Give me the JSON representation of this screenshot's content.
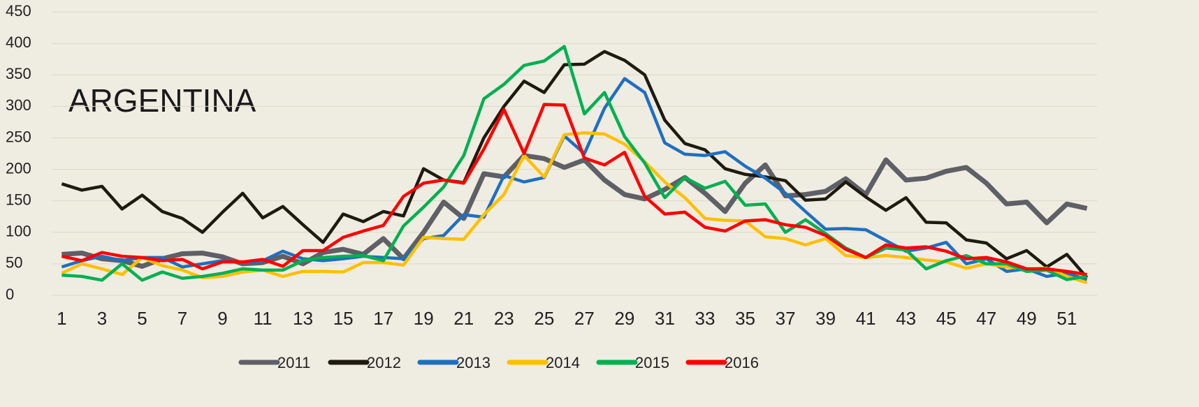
{
  "chart_data": {
    "type": "line",
    "title": "ARGENTINA",
    "x": [
      1,
      2,
      3,
      4,
      5,
      6,
      7,
      8,
      9,
      10,
      11,
      12,
      13,
      14,
      15,
      16,
      17,
      18,
      19,
      20,
      21,
      22,
      23,
      24,
      25,
      26,
      27,
      28,
      29,
      30,
      31,
      32,
      33,
      34,
      35,
      36,
      37,
      38,
      39,
      40,
      41,
      42,
      43,
      44,
      45,
      46,
      47,
      48,
      49,
      50,
      51,
      52
    ],
    "xlim": [
      0.5,
      52.5
    ],
    "xticks": [
      1,
      3,
      5,
      7,
      9,
      11,
      13,
      15,
      17,
      19,
      21,
      23,
      25,
      27,
      29,
      31,
      33,
      35,
      37,
      39,
      41,
      43,
      45,
      47,
      49,
      51
    ],
    "ylim": [
      0,
      450
    ],
    "yticks": [
      0,
      50,
      100,
      150,
      200,
      250,
      300,
      350,
      400,
      450
    ],
    "grid": true,
    "legend": "bottom",
    "series": [
      {
        "name": "2011",
        "color": "#5f5f66",
        "values": [
          65,
          67,
          58,
          55,
          46,
          58,
          66,
          67,
          61,
          50,
          52,
          62,
          50,
          68,
          73,
          65,
          90,
          58,
          100,
          148,
          122,
          193,
          188,
          222,
          217,
          203,
          215,
          183,
          160,
          153,
          168,
          187,
          162,
          133,
          178,
          207,
          158,
          160,
          165,
          185,
          160,
          215,
          183,
          186,
          197,
          203,
          178,
          145,
          148,
          115,
          145,
          138
        ]
      },
      {
        "name": "2012",
        "color": "#1f1a10",
        "values": [
          177,
          167,
          173,
          137,
          159,
          133,
          122,
          100,
          132,
          162,
          123,
          141,
          112,
          84,
          129,
          117,
          133,
          126,
          201,
          183,
          179,
          250,
          300,
          340,
          322,
          366,
          367,
          387,
          373,
          350,
          278,
          241,
          231,
          201,
          192,
          188,
          182,
          151,
          153,
          180,
          156,
          135,
          155,
          116,
          115,
          88,
          83,
          58,
          71,
          45,
          65,
          28
        ]
      },
      {
        "name": "2013",
        "color": "#1f6fc0",
        "values": [
          45,
          55,
          62,
          55,
          60,
          60,
          45,
          50,
          55,
          52,
          55,
          70,
          58,
          55,
          58,
          62,
          60,
          58,
          90,
          95,
          128,
          124,
          190,
          180,
          187,
          253,
          225,
          297,
          344,
          322,
          242,
          224,
          222,
          228,
          205,
          186,
          162,
          133,
          105,
          106,
          104,
          87,
          70,
          75,
          84,
          50,
          58,
          38,
          42,
          30,
          35,
          25
        ]
      },
      {
        "name": "2014",
        "color": "#ffc000",
        "values": [
          35,
          50,
          42,
          33,
          60,
          47,
          40,
          28,
          30,
          37,
          40,
          30,
          38,
          38,
          37,
          52,
          52,
          48,
          92,
          90,
          89,
          128,
          160,
          222,
          188,
          255,
          258,
          256,
          240,
          212,
          180,
          155,
          122,
          119,
          118,
          93,
          90,
          80,
          90,
          63,
          60,
          63,
          60,
          56,
          53,
          43,
          50,
          45,
          42,
          43,
          30,
          20
        ]
      },
      {
        "name": "2015",
        "color": "#00b050",
        "values": [
          32,
          30,
          24,
          50,
          24,
          37,
          27,
          30,
          35,
          42,
          40,
          40,
          55,
          60,
          62,
          63,
          55,
          110,
          140,
          172,
          222,
          312,
          335,
          365,
          372,
          395,
          288,
          322,
          252,
          210,
          155,
          187,
          170,
          181,
          143,
          145,
          100,
          120,
          98,
          75,
          60,
          75,
          72,
          42,
          55,
          63,
          50,
          50,
          38,
          40,
          25,
          30
        ]
      },
      {
        "name": "2016",
        "color": "#ff0000",
        "values": [
          62,
          55,
          68,
          62,
          60,
          55,
          57,
          42,
          53,
          53,
          57,
          46,
          71,
          71,
          92,
          102,
          111,
          157,
          178,
          183,
          178,
          232,
          295,
          225,
          303,
          302,
          218,
          207,
          227,
          157,
          129,
          132,
          108,
          102,
          118,
          120,
          112,
          108,
          95,
          73,
          60,
          80,
          75,
          77,
          70,
          58,
          60,
          53,
          42,
          42,
          38,
          33
        ]
      }
    ]
  }
}
